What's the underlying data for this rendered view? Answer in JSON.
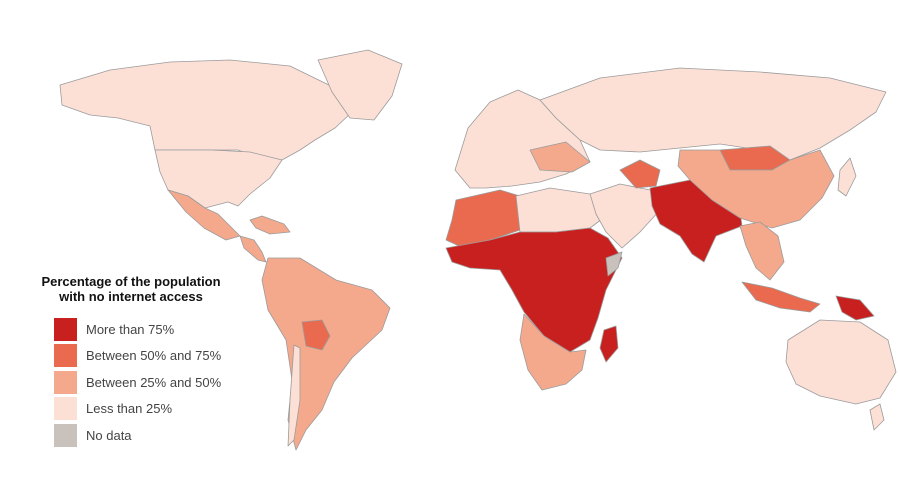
{
  "legend": {
    "title_line1": "Percentage of the population",
    "title_line2": "with no internet access",
    "items": [
      {
        "label": "More than 75%",
        "color": "#c8201e"
      },
      {
        "label": "Between 50% and 75%",
        "color": "#ea6a4f"
      },
      {
        "label": "Between 25% and 50%",
        "color": "#f4a98d"
      },
      {
        "label": "Less than 25%",
        "color": "#fce0d6"
      },
      {
        "label": "No data",
        "color": "#c8c1bc"
      }
    ]
  },
  "colors": {
    "ocean": "#ffffff",
    "border": "#9b9b9b"
  },
  "regions": [
    {
      "name": "canada",
      "cls": 3
    },
    {
      "name": "greenland",
      "cls": 3
    },
    {
      "name": "united-states",
      "cls": 3
    },
    {
      "name": "mexico",
      "cls": 2
    },
    {
      "name": "central-america",
      "cls": 2
    },
    {
      "name": "caribbean",
      "cls": 2
    },
    {
      "name": "south-america",
      "cls": 2
    },
    {
      "name": "bolivia",
      "cls": 1
    },
    {
      "name": "chile",
      "cls": 3
    },
    {
      "name": "europe",
      "cls": 3
    },
    {
      "name": "russia",
      "cls": 3
    },
    {
      "name": "eastern-europe",
      "cls": 2
    },
    {
      "name": "west-sahara-africa",
      "cls": 1
    },
    {
      "name": "libya-egypt",
      "cls": 3
    },
    {
      "name": "sub-saharan-africa",
      "cls": 0
    },
    {
      "name": "southern-africa",
      "cls": 2
    },
    {
      "name": "madagascar",
      "cls": 0
    },
    {
      "name": "middle-east",
      "cls": 3
    },
    {
      "name": "central-asia",
      "cls": 1
    },
    {
      "name": "south-asia",
      "cls": 0
    },
    {
      "name": "mongolia",
      "cls": 1
    },
    {
      "name": "china",
      "cls": 2
    },
    {
      "name": "southeast-asia",
      "cls": 2
    },
    {
      "name": "indonesia",
      "cls": 1
    },
    {
      "name": "papua-new-guinea",
      "cls": 0
    },
    {
      "name": "australia",
      "cls": 3
    },
    {
      "name": "new-zealand",
      "cls": 3
    },
    {
      "name": "somalia",
      "cls": 4
    },
    {
      "name": "japan",
      "cls": 3
    }
  ]
}
